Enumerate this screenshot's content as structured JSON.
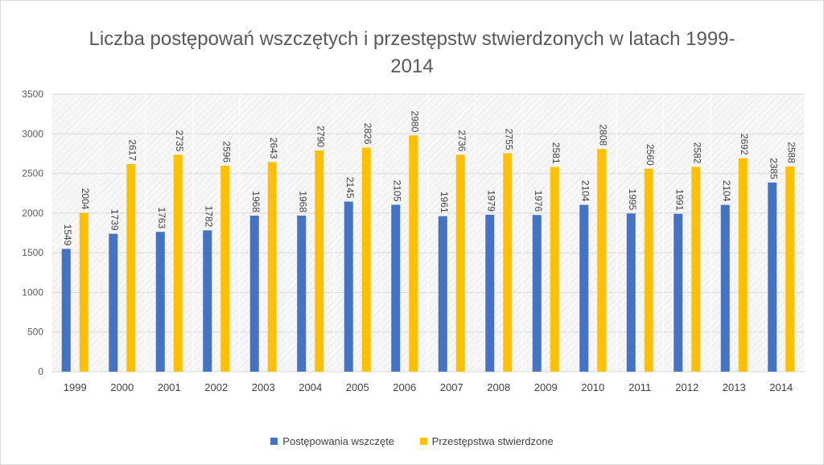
{
  "chart_data": {
    "type": "bar",
    "title_lines": [
      "Liczba postępowań wszczętych i przestępstw stwierdzonych w latach 1999-",
      "2014"
    ],
    "categories": [
      "1999",
      "2000",
      "2001",
      "2002",
      "2003",
      "2004",
      "2005",
      "2006",
      "2007",
      "2008",
      "2009",
      "2010",
      "2011",
      "2012",
      "2013",
      "2014"
    ],
    "series": [
      {
        "name": "Postępowania wszczęte",
        "color": "#4472c4",
        "values": [
          1549,
          1739,
          1763,
          1782,
          1968,
          1968,
          2145,
          2105,
          1961,
          1979,
          1976,
          2104,
          1995,
          1991,
          2104,
          2385
        ]
      },
      {
        "name": "Przestępstwa stwierdzone",
        "color": "#ffc000",
        "values": [
          2004,
          2617,
          2735,
          2596,
          2643,
          2790,
          2826,
          2980,
          2736,
          2755,
          2581,
          2808,
          2560,
          2582,
          2692,
          2588
        ]
      }
    ],
    "ylim": [
      0,
      3500
    ],
    "yticks": [
      0,
      500,
      1000,
      1500,
      2000,
      2500,
      3000,
      3500
    ],
    "grid": true,
    "legend_position": "bottom"
  }
}
